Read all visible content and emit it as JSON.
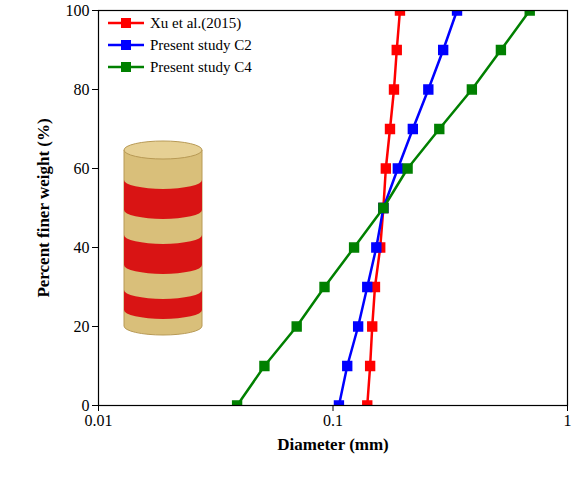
{
  "chart_data": {
    "type": "line",
    "xlabel": "Diameter (mm)",
    "ylabel": "Percent finer weight (%)",
    "log": "x",
    "grid": false,
    "legend": "top-left",
    "xlim": [
      0.01,
      1
    ],
    "xticks": [
      0.01,
      0.1,
      1
    ],
    "ylim": [
      0,
      100
    ],
    "yticks": [
      0,
      20,
      40,
      60,
      80,
      100
    ],
    "series": [
      {
        "name": "Xu et al.(2015)",
        "color": "#ff0000",
        "marker": "square",
        "line_style": "solid",
        "x": [
          0.14,
          0.144,
          0.147,
          0.151,
          0.159,
          0.164,
          0.168,
          0.175,
          0.182,
          0.187,
          0.193
        ],
        "values": [
          0,
          10,
          20,
          30,
          40,
          50,
          60,
          70,
          80,
          90,
          100
        ]
      },
      {
        "name": "Present study C2",
        "color": "#0000ff",
        "marker": "square",
        "line_style": "solid",
        "x": [
          0.106,
          0.115,
          0.128,
          0.14,
          0.153,
          0.164,
          0.189,
          0.219,
          0.255,
          0.295,
          0.338
        ],
        "values": [
          0,
          10,
          20,
          30,
          40,
          50,
          60,
          70,
          80,
          90,
          100
        ]
      },
      {
        "name": "Present study C4",
        "color": "#008000",
        "marker": "square",
        "line_style": "solid",
        "x": [
          0.039,
          0.051,
          0.07,
          0.092,
          0.123,
          0.164,
          0.208,
          0.284,
          0.391,
          0.52,
          0.69
        ],
        "values": [
          0,
          10,
          20,
          30,
          40,
          50,
          60,
          70,
          80,
          90,
          100
        ]
      }
    ]
  }
}
